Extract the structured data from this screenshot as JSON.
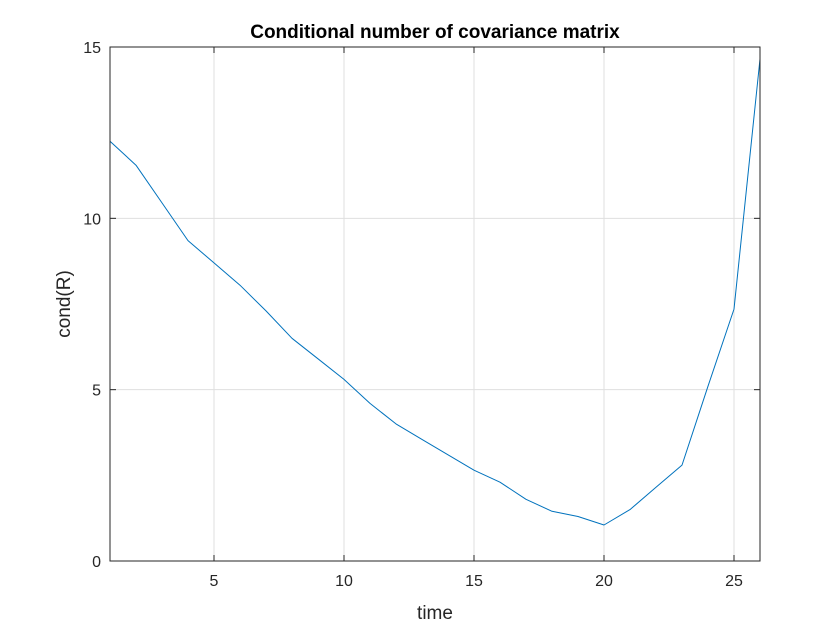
{
  "chart_data": {
    "type": "line",
    "title": "Conditional number of covariance matrix",
    "xlabel": "time",
    "ylabel": "cond(R)",
    "xlim": [
      1,
      26
    ],
    "ylim": [
      0,
      15
    ],
    "xticks": [
      5,
      10,
      15,
      20,
      25
    ],
    "yticks": [
      0,
      5,
      10,
      15
    ],
    "grid": true,
    "legend": "none",
    "series": [
      {
        "color": "#0072BD",
        "x": [
          1,
          2,
          3,
          4,
          5,
          6,
          7,
          8,
          9,
          10,
          11,
          12,
          13,
          14,
          15,
          16,
          17,
          18,
          19,
          20,
          21,
          22,
          23,
          24,
          25,
          26
        ],
        "y": [
          12.25,
          11.55,
          10.45,
          9.35,
          8.7,
          8.05,
          7.3,
          6.5,
          5.9,
          5.3,
          4.6,
          4.0,
          3.55,
          3.1,
          2.65,
          2.3,
          1.8,
          1.45,
          1.3,
          1.05,
          1.5,
          2.15,
          2.8,
          5.1,
          7.35,
          14.65
        ]
      }
    ]
  }
}
